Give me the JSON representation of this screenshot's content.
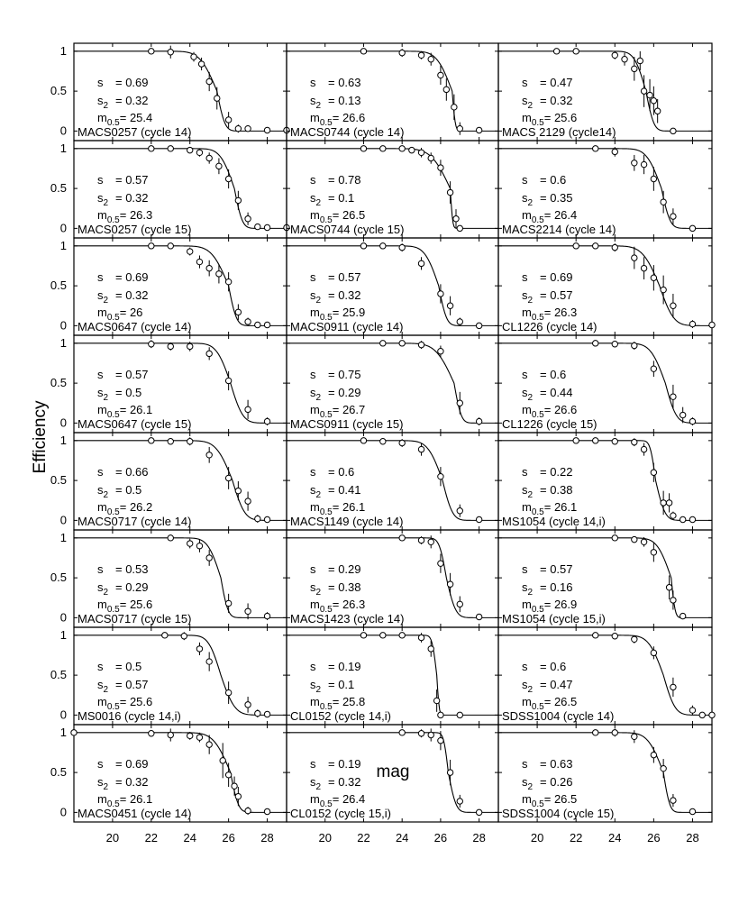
{
  "chart_data": {
    "type": "scatter",
    "xlabel": "mag",
    "ylabel": "Efficiency",
    "xlim": [
      18,
      29
    ],
    "ylim": [
      -0.12,
      1.1
    ],
    "xticks": [
      20,
      22,
      24,
      26,
      28
    ],
    "yticks": [
      0,
      0.5,
      1
    ],
    "grid": false,
    "layout": {
      "rows": 8,
      "cols": 3
    },
    "param_labels": {
      "s": "s",
      "s2_base": "s",
      "s2_sub": "2",
      "m_base": "m",
      "m_sub": "0.5"
    },
    "panels": [
      {
        "label": "MACS0257 (cycle 14)",
        "s": "0.69",
        "s2": "0.32",
        "m05": "25.4",
        "x": [
          22,
          23,
          24.2,
          24.6,
          25,
          25.4,
          26,
          26.5,
          27,
          28,
          29
        ],
        "y": [
          1.0,
          0.99,
          0.93,
          0.84,
          0.62,
          0.41,
          0.14,
          0.03,
          0.03,
          0.01,
          0.01
        ],
        "err": [
          0.04,
          0.08,
          0.06,
          0.08,
          0.12,
          0.14,
          0.1,
          0.05,
          0.03,
          0.02,
          0.02
        ]
      },
      {
        "label": "MACS0744 (cycle 14)",
        "s": "0.63",
        "s2": "0.13",
        "m05": "26.6",
        "x": [
          22,
          24,
          25,
          25.5,
          26,
          26.3,
          26.7,
          27,
          28
        ],
        "y": [
          1.0,
          0.98,
          0.95,
          0.9,
          0.7,
          0.52,
          0.3,
          0.03,
          0.01
        ],
        "err": [
          0.03,
          0.05,
          0.05,
          0.08,
          0.12,
          0.14,
          0.16,
          0.08,
          0.02
        ]
      },
      {
        "label": "MACS 2129 (cycle14)",
        "s": "0.47",
        "s2": "0.32",
        "m05": "25.6",
        "x": [
          21,
          22,
          24,
          24.5,
          25,
          25.3,
          25.5,
          25.8,
          26,
          26.2,
          27
        ],
        "y": [
          1.0,
          1.0,
          0.95,
          0.9,
          0.78,
          0.88,
          0.5,
          0.45,
          0.38,
          0.25,
          0.0
        ],
        "err": [
          0.03,
          0.03,
          0.05,
          0.08,
          0.15,
          0.12,
          0.2,
          0.2,
          0.18,
          0.15,
          0.03
        ]
      },
      {
        "label": "MACS0257 (cycle 15)",
        "s": "0.57",
        "s2": "0.32",
        "m05": "26.3",
        "x": [
          22,
          23,
          24,
          24.5,
          25,
          25.5,
          26,
          26.5,
          27,
          27.5,
          28,
          29
        ],
        "y": [
          1.0,
          1.0,
          0.98,
          0.95,
          0.88,
          0.78,
          0.62,
          0.35,
          0.12,
          0.02,
          0.01,
          0.01
        ],
        "err": [
          0.03,
          0.03,
          0.04,
          0.05,
          0.07,
          0.1,
          0.12,
          0.12,
          0.08,
          0.03,
          0.02,
          0.02
        ]
      },
      {
        "label": "MACS0744 (cycle 15)",
        "s": "0.78",
        "s2": "0.1",
        "m05": "26.5",
        "x": [
          22,
          23,
          24,
          24.5,
          25,
          25.5,
          26,
          26.5,
          26.8,
          27
        ],
        "y": [
          1.0,
          1.0,
          1.0,
          0.98,
          0.95,
          0.88,
          0.76,
          0.45,
          0.12,
          0.0
        ],
        "err": [
          0.02,
          0.02,
          0.03,
          0.04,
          0.06,
          0.07,
          0.1,
          0.14,
          0.12,
          0.02
        ]
      },
      {
        "label": "MACS2214 (cycle 14)",
        "s": "0.6",
        "s2": "0.35",
        "m05": "26.4",
        "x": [
          23,
          24,
          25,
          25.5,
          26,
          26.5,
          27,
          28
        ],
        "y": [
          1.0,
          0.96,
          0.82,
          0.8,
          0.62,
          0.33,
          0.15,
          0.0
        ],
        "err": [
          0.03,
          0.06,
          0.1,
          0.12,
          0.15,
          0.14,
          0.1,
          0.03
        ]
      },
      {
        "label": "MACS0647 (cycle 14)",
        "s": "0.69",
        "s2": "0.32",
        "m05": "26",
        "x": [
          22,
          23,
          24,
          24.5,
          25,
          25.5,
          26,
          26.5,
          27,
          27.5,
          28
        ],
        "y": [
          1.0,
          1.0,
          0.93,
          0.8,
          0.72,
          0.65,
          0.55,
          0.17,
          0.05,
          0.01,
          0.01
        ],
        "err": [
          0.03,
          0.03,
          0.05,
          0.08,
          0.1,
          0.12,
          0.12,
          0.1,
          0.05,
          0.02,
          0.02
        ]
      },
      {
        "label": "MACS0911 (cycle 14)",
        "s": "0.57",
        "s2": "0.32",
        "m05": "25.9",
        "x": [
          22,
          23,
          24,
          25,
          26,
          26.5,
          27,
          28
        ],
        "y": [
          1.0,
          1.0,
          0.98,
          0.78,
          0.4,
          0.25,
          0.05,
          0.0
        ],
        "err": [
          0.03,
          0.04,
          0.05,
          0.08,
          0.12,
          0.12,
          0.05,
          0.02
        ]
      },
      {
        "label": "CL1226 (cycle 14)",
        "s": "0.69",
        "s2": "0.57",
        "m05": "26.3",
        "x": [
          22,
          23,
          24,
          25,
          25.5,
          26,
          26.5,
          27,
          28,
          29
        ],
        "y": [
          1.0,
          1.0,
          0.98,
          0.85,
          0.72,
          0.6,
          0.45,
          0.25,
          0.02,
          0.01
        ],
        "err": [
          0.03,
          0.03,
          0.05,
          0.14,
          0.14,
          0.16,
          0.18,
          0.15,
          0.05,
          0.03
        ]
      },
      {
        "label": "MACS0647 (cycle 15)",
        "s": "0.57",
        "s2": "0.5",
        "m05": "26.1",
        "x": [
          22,
          23,
          24,
          25,
          26,
          27,
          28
        ],
        "y": [
          0.99,
          0.96,
          0.96,
          0.87,
          0.53,
          0.17,
          0.02
        ],
        "err": [
          0.05,
          0.05,
          0.06,
          0.08,
          0.12,
          0.12,
          0.05
        ]
      },
      {
        "label": "MACS0911 (cycle 15)",
        "s": "0.75",
        "s2": "0.29",
        "m05": "26.7",
        "x": [
          23,
          24,
          25,
          26,
          27,
          28
        ],
        "y": [
          1.0,
          1.0,
          0.98,
          0.9,
          0.25,
          0.02
        ],
        "err": [
          0.03,
          0.03,
          0.05,
          0.07,
          0.14,
          0.05
        ]
      },
      {
        "label": "CL1226 (cycle 15)",
        "s": "0.6",
        "s2": "0.44",
        "m05": "26.6",
        "x": [
          23,
          24,
          25,
          26,
          27,
          27.5,
          28
        ],
        "y": [
          1.0,
          0.99,
          0.97,
          0.68,
          0.33,
          0.1,
          0.02
        ],
        "err": [
          0.04,
          0.04,
          0.05,
          0.1,
          0.15,
          0.1,
          0.05
        ]
      },
      {
        "label": "MACS0717 (cycle 14)",
        "s": "0.66",
        "s2": "0.5",
        "m05": "26.2",
        "x": [
          22,
          23,
          24,
          25,
          26,
          26.5,
          27,
          27.5,
          28
        ],
        "y": [
          1.0,
          0.99,
          0.99,
          0.82,
          0.53,
          0.37,
          0.24,
          0.02,
          0.01
        ],
        "err": [
          0.03,
          0.04,
          0.05,
          0.1,
          0.14,
          0.12,
          0.12,
          0.05,
          0.02
        ]
      },
      {
        "label": "MACS1149 (cycle 14)",
        "s": "0.6",
        "s2": "0.41",
        "m05": "26.1",
        "x": [
          22,
          23,
          24,
          25,
          26,
          27,
          28
        ],
        "y": [
          1.0,
          0.99,
          0.97,
          0.89,
          0.55,
          0.12,
          0.01
        ],
        "err": [
          0.03,
          0.04,
          0.05,
          0.08,
          0.12,
          0.08,
          0.03
        ]
      },
      {
        "label": "MS1054 (cycle 14,i)",
        "s": "0.22",
        "s2": "0.38",
        "m05": "26.1",
        "x": [
          22,
          23,
          24,
          25,
          25.5,
          26,
          26.5,
          26.8,
          27,
          27.5,
          28
        ],
        "y": [
          1.0,
          1.0,
          0.99,
          0.98,
          0.89,
          0.6,
          0.22,
          0.22,
          0.06,
          0.01,
          0.01
        ],
        "err": [
          0.03,
          0.03,
          0.04,
          0.05,
          0.08,
          0.12,
          0.15,
          0.12,
          0.05,
          0.02,
          0.02
        ]
      },
      {
        "label": "MACS0717 (cycle 15)",
        "s": "0.53",
        "s2": "0.29",
        "m05": "25.6",
        "x": [
          23,
          24,
          24.5,
          25,
          26,
          27,
          28
        ],
        "y": [
          1.0,
          0.93,
          0.9,
          0.75,
          0.18,
          0.08,
          0.02
        ],
        "err": [
          0.04,
          0.06,
          0.08,
          0.1,
          0.12,
          0.1,
          0.05
        ]
      },
      {
        "label": "MACS1423 (cycle 14)",
        "s": "0.29",
        "s2": "0.38",
        "m05": "26.3",
        "x": [
          24,
          25,
          25.5,
          26,
          26.5,
          27,
          28
        ],
        "y": [
          1.0,
          0.97,
          0.95,
          0.68,
          0.42,
          0.17,
          0.01
        ],
        "err": [
          0.03,
          0.05,
          0.08,
          0.12,
          0.14,
          0.1,
          0.03
        ]
      },
      {
        "label": "MS1054 (cycle 15,i)",
        "s": "0.57",
        "s2": "0.16",
        "m05": "26.9",
        "x": [
          24,
          25,
          25.5,
          26,
          26.8,
          27,
          27.5
        ],
        "y": [
          1.0,
          0.98,
          0.95,
          0.82,
          0.38,
          0.22,
          0.02
        ],
        "err": [
          0.03,
          0.04,
          0.06,
          0.12,
          0.15,
          0.12,
          0.04
        ]
      },
      {
        "label": "MS0016 (cycle 14,i)",
        "s": "0.5",
        "s2": "0.57",
        "m05": "25.6",
        "x": [
          22.7,
          23.7,
          24.5,
          25,
          26,
          27,
          27.5,
          28
        ],
        "y": [
          1.0,
          0.99,
          0.83,
          0.67,
          0.28,
          0.13,
          0.02,
          0.01
        ],
        "err": [
          0.04,
          0.05,
          0.08,
          0.12,
          0.14,
          0.1,
          0.05,
          0.02
        ]
      },
      {
        "label": "CL0152 (cycle 14,i)",
        "s": "0.19",
        "s2": "0.1",
        "m05": "25.8",
        "x": [
          22,
          23,
          24,
          25,
          25.5,
          25.8,
          26,
          27
        ],
        "y": [
          1.0,
          1.0,
          1.0,
          0.97,
          0.83,
          0.18,
          0.0,
          0.0
        ],
        "err": [
          0.03,
          0.03,
          0.04,
          0.06,
          0.1,
          0.14,
          0.03,
          0.03
        ]
      },
      {
        "label": "SDSS1004 (cycle 14)",
        "s": "0.6",
        "s2": "0.47",
        "m05": "26.5",
        "x": [
          23,
          24,
          25,
          26,
          27,
          28,
          28.5,
          29
        ],
        "y": [
          1.0,
          0.99,
          0.95,
          0.78,
          0.35,
          0.06,
          0.0,
          0.0
        ],
        "err": [
          0.03,
          0.04,
          0.05,
          0.08,
          0.12,
          0.06,
          0.03,
          0.02
        ]
      },
      {
        "label": "MACS0451 (cycle 14)",
        "s": "0.69",
        "s2": "0.32",
        "m05": "26.1",
        "x": [
          18,
          22,
          23,
          24,
          24.5,
          25,
          25.7,
          26,
          26.3,
          26.5,
          27,
          28
        ],
        "y": [
          1.0,
          0.99,
          0.97,
          0.96,
          0.94,
          0.85,
          0.65,
          0.47,
          0.33,
          0.2,
          0.02,
          0.01
        ],
        "err": [
          0.02,
          0.04,
          0.08,
          0.05,
          0.06,
          0.12,
          0.22,
          0.15,
          0.12,
          0.12,
          0.05,
          0.02
        ]
      },
      {
        "label": "CL0152 (cycle 15,i)",
        "s": "0.19",
        "s2": "0.32",
        "m05": "26.4",
        "x": [
          24,
          25,
          25.5,
          26,
          26.5,
          27,
          28
        ],
        "y": [
          1.0,
          0.99,
          0.97,
          0.9,
          0.5,
          0.14,
          0.0
        ],
        "err": [
          0.03,
          0.05,
          0.08,
          0.12,
          0.16,
          0.08,
          0.02
        ]
      },
      {
        "label": "SDSS1004 (cycle 15)",
        "s": "0.63",
        "s2": "0.26",
        "m05": "26.5",
        "x": [
          23,
          24,
          25,
          26,
          26.5,
          27,
          28
        ],
        "y": [
          1.0,
          1.0,
          0.95,
          0.72,
          0.55,
          0.15,
          0.01
        ],
        "err": [
          0.03,
          0.05,
          0.08,
          0.1,
          0.12,
          0.08,
          0.02
        ]
      }
    ]
  }
}
